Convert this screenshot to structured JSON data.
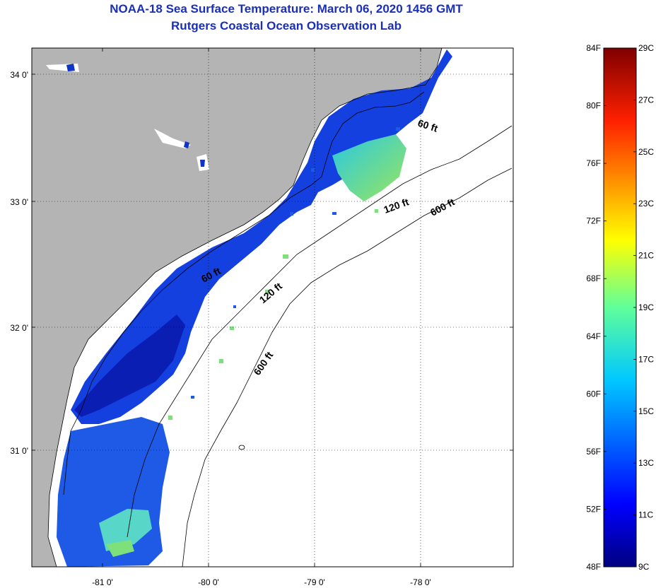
{
  "title": {
    "line1": "NOAA-18 Sea Surface Temperature:  March 06, 2020 1456 GMT",
    "line2": "Rutgers Coastal Ocean Observation Lab"
  },
  "map": {
    "lat_ticks": [
      "34 0'",
      "33 0'",
      "32 0'",
      "31 0'"
    ],
    "lon_ticks": [
      "-81 0'",
      "-80 0'",
      "-79 0'",
      "-78 0'"
    ],
    "isobath_labels": [
      "60 ft",
      "120 ft",
      "600 ft",
      "60 ft",
      "120 ft",
      "600 ft"
    ],
    "colors": {
      "land": "#b4b4b4",
      "cold": "#0a28d2",
      "mid": "#1e6ef0",
      "warm": "#64e6a0",
      "contour": "#000000"
    }
  },
  "colorbar": {
    "fahrenheit": [
      "84F",
      "80F",
      "76F",
      "72F",
      "68F",
      "64F",
      "60F",
      "56F",
      "52F",
      "48F"
    ],
    "celsius": [
      "29C",
      "27C",
      "25C",
      "23C",
      "21C",
      "19C",
      "17C",
      "15C",
      "13C",
      "11C",
      "9C"
    ]
  }
}
